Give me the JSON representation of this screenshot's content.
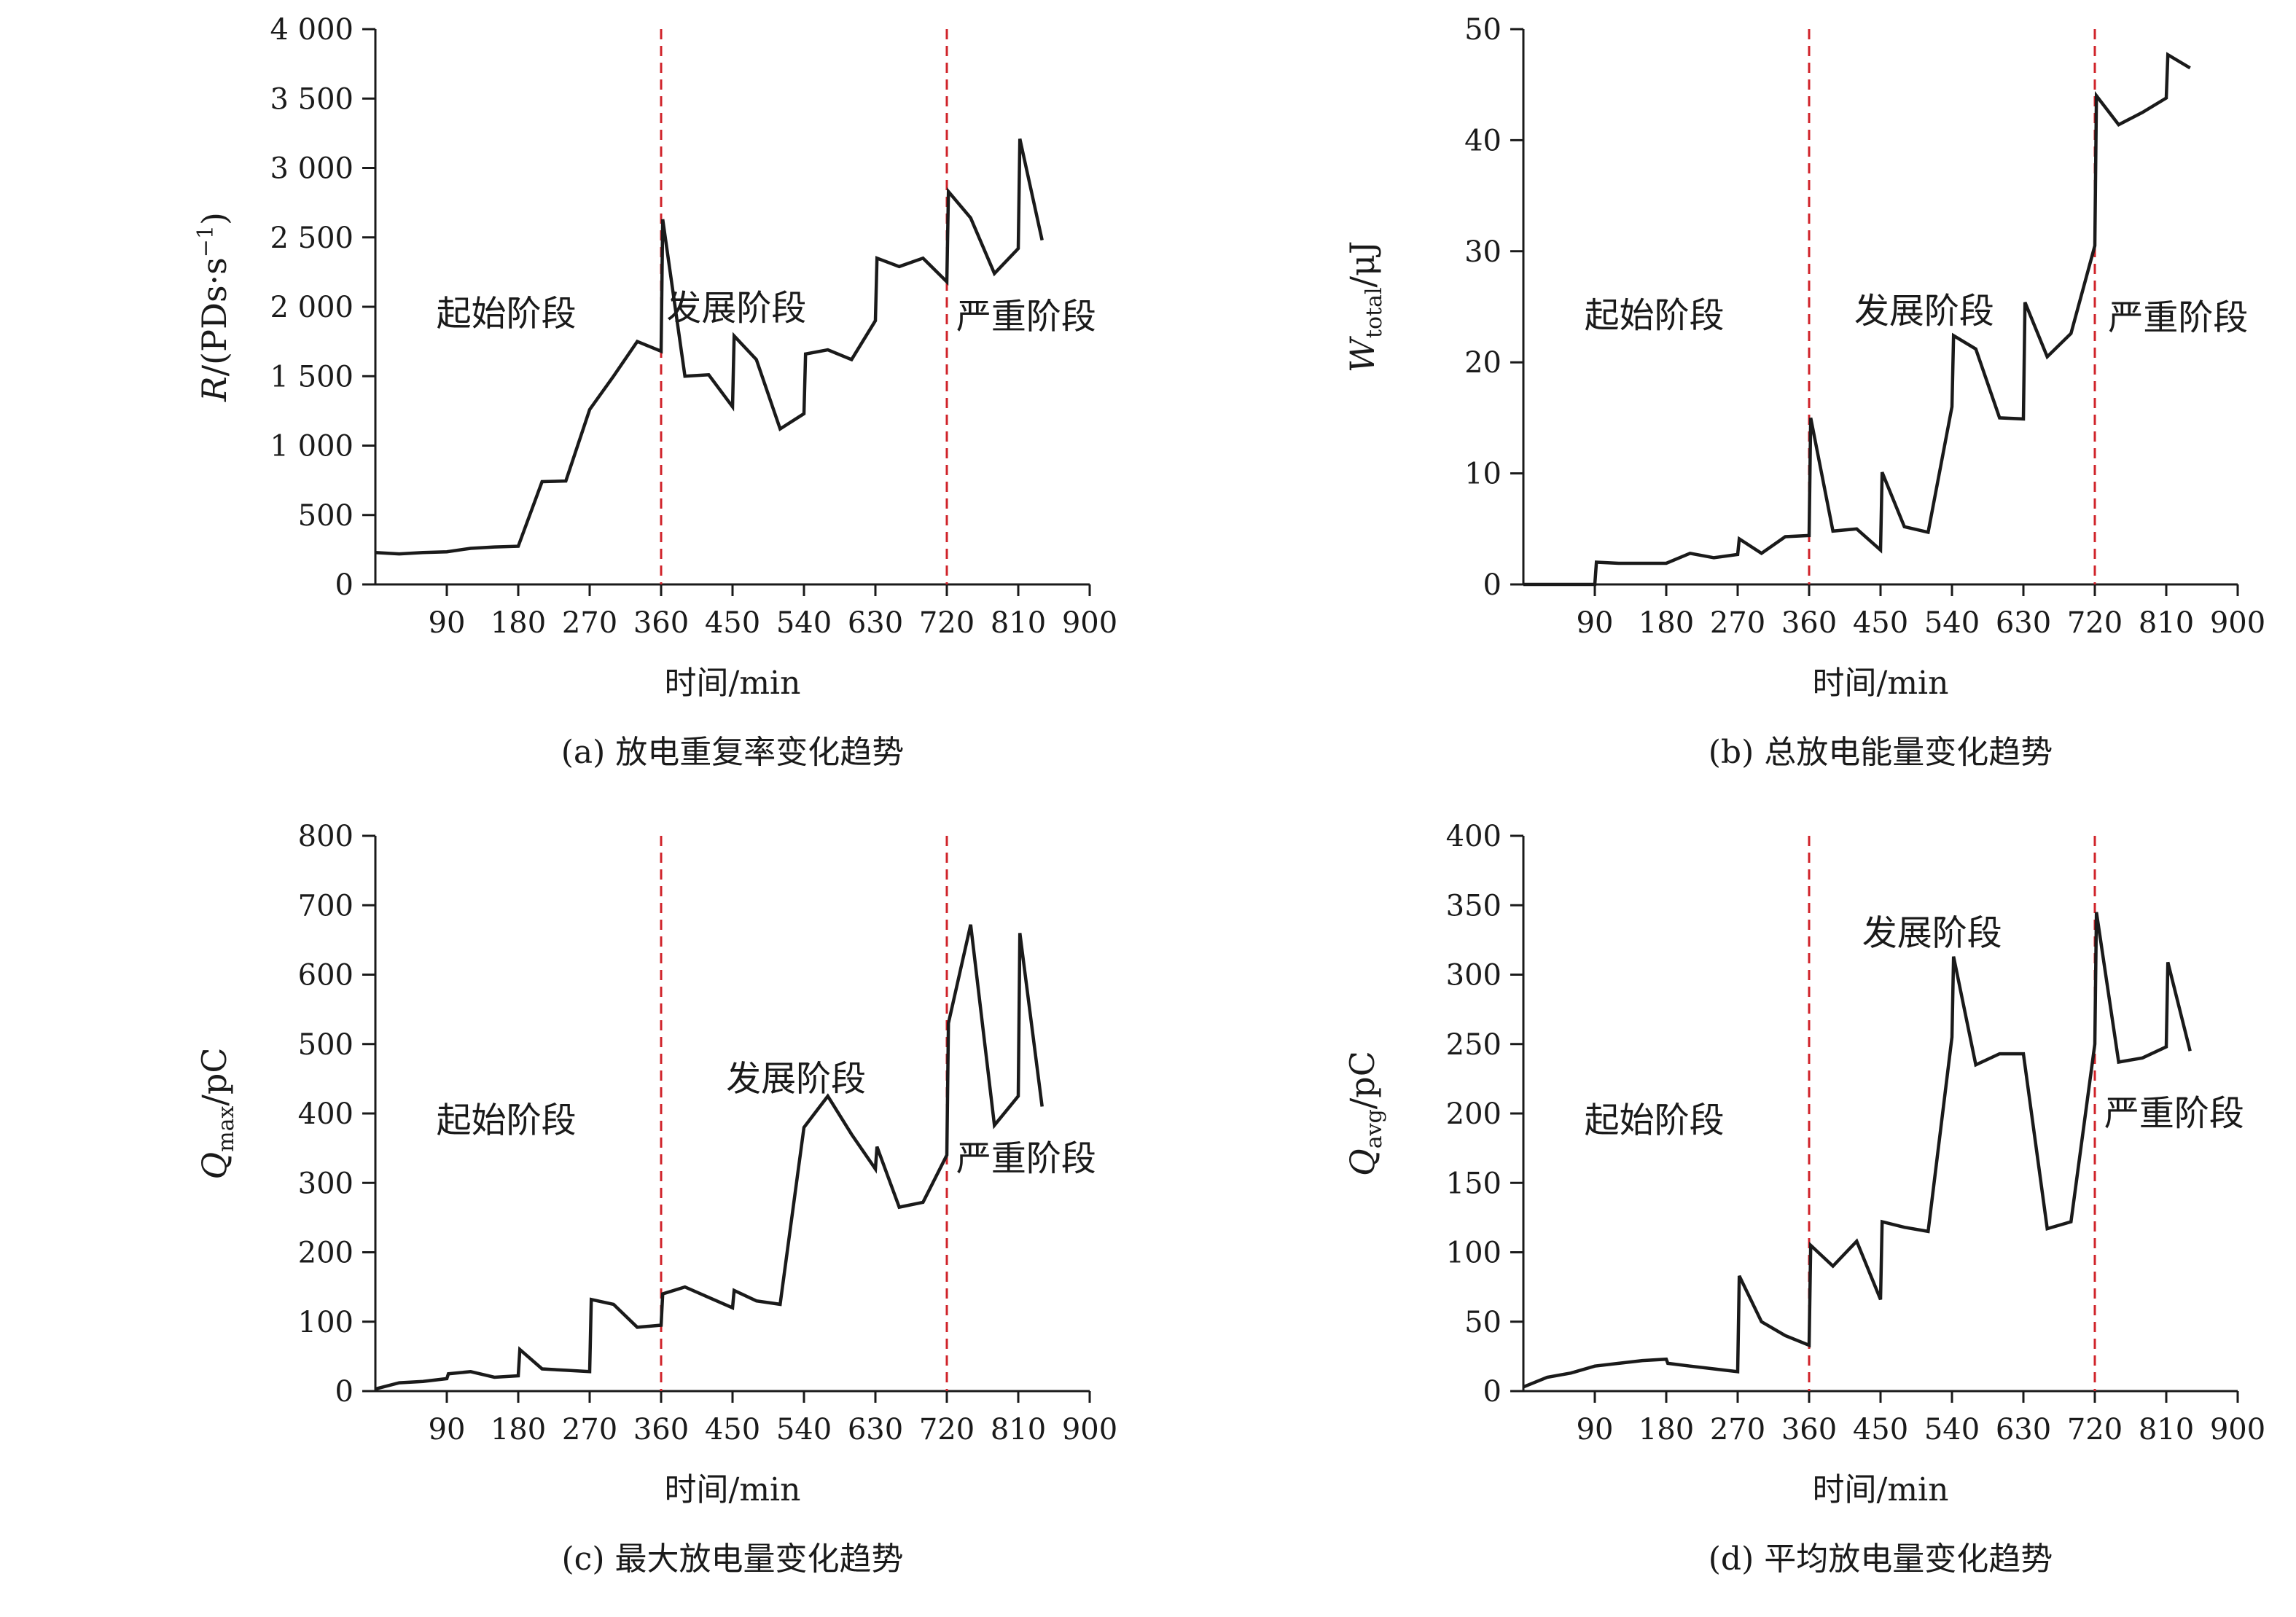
{
  "chart_data": [
    {
      "id": "a",
      "type": "line",
      "caption": "(a) 放电重复率变化趋势",
      "ylabel": {
        "main": "R",
        "sub": "",
        "rest": "/(PDs·s",
        "sup": "−1",
        "tail": ")"
      },
      "xlabel": "时间/min",
      "xlim": [
        0,
        900
      ],
      "ylim": [
        0,
        4000
      ],
      "xticks": [
        90,
        180,
        270,
        360,
        450,
        540,
        630,
        720,
        810,
        900
      ],
      "xtick_labels": [
        "90",
        "180",
        "270",
        "360",
        "450",
        "540",
        "630",
        "720",
        "810",
        "900"
      ],
      "yticks": [
        0,
        500,
        1000,
        1500,
        2000,
        2500,
        3000,
        3500,
        4000
      ],
      "ytick_labels": [
        "0",
        "500",
        "1 000",
        "1 500",
        "2 000",
        "2 500",
        "3 000",
        "3 500",
        "4 000"
      ],
      "dividers": [
        360,
        720
      ],
      "annotations": [
        {
          "text": "起始阶段",
          "x": 165,
          "y": 1950
        },
        {
          "text": "发展阶段",
          "x": 455,
          "y": 1990
        },
        {
          "text": "严重阶段",
          "x": 820,
          "y": 1930
        }
      ],
      "series": [
        {
          "values": [
            [
              0,
              230
            ],
            [
              30,
              220
            ],
            [
              60,
              230
            ],
            [
              90,
              235
            ],
            [
              120,
              260
            ],
            [
              150,
              270
            ],
            [
              180,
              275
            ],
            [
              210,
              740
            ],
            [
              240,
              745
            ],
            [
              270,
              1260
            ],
            [
              300,
              1500
            ],
            [
              330,
              1750
            ],
            [
              360,
              1680
            ],
            [
              362,
              2630
            ],
            [
              390,
              1500
            ],
            [
              420,
              1510
            ],
            [
              450,
              1280
            ],
            [
              452,
              1790
            ],
            [
              480,
              1620
            ],
            [
              510,
              1120
            ],
            [
              540,
              1230
            ],
            [
              542,
              1660
            ],
            [
              570,
              1690
            ],
            [
              600,
              1620
            ],
            [
              630,
              1900
            ],
            [
              632,
              2350
            ],
            [
              660,
              2290
            ],
            [
              690,
              2350
            ],
            [
              720,
              2180
            ],
            [
              722,
              2830
            ],
            [
              750,
              2640
            ],
            [
              780,
              2240
            ],
            [
              810,
              2420
            ],
            [
              812,
              3210
            ],
            [
              840,
              2480
            ]
          ]
        }
      ]
    },
    {
      "id": "b",
      "type": "line",
      "caption": "(b) 总放电能量变化趋势",
      "ylabel": {
        "main": "W",
        "sub": "total",
        "rest": "/μJ",
        "sup": "",
        "tail": ""
      },
      "xlabel": "时间/min",
      "xlim": [
        0,
        900
      ],
      "ylim": [
        0,
        50
      ],
      "xticks": [
        90,
        180,
        270,
        360,
        450,
        540,
        630,
        720,
        810,
        900
      ],
      "xtick_labels": [
        "90",
        "180",
        "270",
        "360",
        "450",
        "540",
        "630",
        "720",
        "810",
        "900"
      ],
      "yticks": [
        0,
        10,
        20,
        30,
        40,
        50
      ],
      "ytick_labels": [
        "0",
        "10",
        "20",
        "30",
        "40",
        "50"
      ],
      "dividers": [
        360,
        720
      ],
      "annotations": [
        {
          "text": "起始阶段",
          "x": 165,
          "y": 24.2
        },
        {
          "text": "发展阶段",
          "x": 505,
          "y": 24.6
        },
        {
          "text": "严重阶段",
          "x": 825,
          "y": 24.0
        }
      ],
      "series": [
        {
          "values": [
            [
              0,
              0
            ],
            [
              30,
              0
            ],
            [
              60,
              0
            ],
            [
              90,
              0
            ],
            [
              92,
              2.0
            ],
            [
              120,
              1.9
            ],
            [
              150,
              1.9
            ],
            [
              180,
              1.9
            ],
            [
              210,
              2.8
            ],
            [
              240,
              2.4
            ],
            [
              270,
              2.7
            ],
            [
              272,
              4.1
            ],
            [
              300,
              2.8
            ],
            [
              330,
              4.3
            ],
            [
              360,
              4.4
            ],
            [
              362,
              15.0
            ],
            [
              390,
              4.8
            ],
            [
              420,
              5.0
            ],
            [
              450,
              3.1
            ],
            [
              452,
              10.1
            ],
            [
              480,
              5.2
            ],
            [
              510,
              4.7
            ],
            [
              540,
              16.0
            ],
            [
              542,
              22.4
            ],
            [
              570,
              21.2
            ],
            [
              600,
              15.0
            ],
            [
              630,
              14.9
            ],
            [
              632,
              25.4
            ],
            [
              660,
              20.5
            ],
            [
              690,
              22.6
            ],
            [
              720,
              30.5
            ],
            [
              722,
              44.0
            ],
            [
              750,
              41.4
            ],
            [
              780,
              42.5
            ],
            [
              810,
              43.8
            ],
            [
              812,
              47.7
            ],
            [
              840,
              46.5
            ]
          ]
        }
      ]
    },
    {
      "id": "c",
      "type": "line",
      "caption": "(c) 最大放电量变化趋势",
      "ylabel": {
        "main": "Q",
        "sub": "max",
        "rest": "/pC",
        "sup": "",
        "tail": ""
      },
      "xlabel": "时间/min",
      "xlim": [
        0,
        900
      ],
      "ylim": [
        0,
        800
      ],
      "xticks": [
        90,
        180,
        270,
        360,
        450,
        540,
        630,
        720,
        810,
        900
      ],
      "xtick_labels": [
        "90",
        "180",
        "270",
        "360",
        "450",
        "540",
        "630",
        "720",
        "810",
        "900"
      ],
      "yticks": [
        0,
        100,
        200,
        300,
        400,
        500,
        600,
        700,
        800
      ],
      "ytick_labels": [
        "0",
        "100",
        "200",
        "300",
        "400",
        "500",
        "600",
        "700",
        "800"
      ],
      "dividers": [
        360,
        720
      ],
      "annotations": [
        {
          "text": "起始阶段",
          "x": 165,
          "y": 390
        },
        {
          "text": "发展阶段",
          "x": 530,
          "y": 450
        },
        {
          "text": "严重阶段",
          "x": 820,
          "y": 335
        }
      ],
      "series": [
        {
          "values": [
            [
              0,
              3
            ],
            [
              30,
              12
            ],
            [
              60,
              14
            ],
            [
              90,
              18
            ],
            [
              92,
              25
            ],
            [
              120,
              28
            ],
            [
              150,
              20
            ],
            [
              180,
              22
            ],
            [
              182,
              60
            ],
            [
              210,
              32
            ],
            [
              240,
              30
            ],
            [
              270,
              28
            ],
            [
              272,
              132
            ],
            [
              300,
              125
            ],
            [
              330,
              92
            ],
            [
              360,
              95
            ],
            [
              362,
              140
            ],
            [
              390,
              150
            ],
            [
              420,
              135
            ],
            [
              450,
              120
            ],
            [
              452,
              145
            ],
            [
              480,
              130
            ],
            [
              510,
              125
            ],
            [
              540,
              380
            ],
            [
              570,
              425
            ],
            [
              600,
              370
            ],
            [
              630,
              320
            ],
            [
              632,
              352
            ],
            [
              660,
              265
            ],
            [
              690,
              272
            ],
            [
              720,
              340
            ],
            [
              722,
              530
            ],
            [
              750,
              672
            ],
            [
              780,
              383
            ],
            [
              810,
              425
            ],
            [
              812,
              660
            ],
            [
              840,
              410
            ]
          ]
        }
      ]
    },
    {
      "id": "d",
      "type": "line",
      "caption": "(d) 平均放电量变化趋势",
      "ylabel": {
        "main": "Q",
        "sub": "avg",
        "rest": "/pC",
        "sup": "",
        "tail": ""
      },
      "xlabel": "时间/min",
      "xlim": [
        0,
        900
      ],
      "ylim": [
        0,
        400
      ],
      "xticks": [
        90,
        180,
        270,
        360,
        450,
        540,
        630,
        720,
        810,
        900
      ],
      "xtick_labels": [
        "90",
        "180",
        "270",
        "360",
        "450",
        "540",
        "630",
        "720",
        "810",
        "900"
      ],
      "yticks": [
        0,
        50,
        100,
        150,
        200,
        250,
        300,
        350,
        400
      ],
      "ytick_labels": [
        "0",
        "50",
        "100",
        "150",
        "200",
        "250",
        "300",
        "350",
        "400"
      ],
      "dividers": [
        360,
        720
      ],
      "annotations": [
        {
          "text": "起始阶段",
          "x": 165,
          "y": 195
        },
        {
          "text": "发展阶段",
          "x": 515,
          "y": 330
        },
        {
          "text": "严重阶段",
          "x": 820,
          "y": 200
        }
      ],
      "series": [
        {
          "values": [
            [
              0,
              3
            ],
            [
              30,
              10
            ],
            [
              60,
              13
            ],
            [
              90,
              18
            ],
            [
              120,
              20
            ],
            [
              150,
              22
            ],
            [
              180,
              23
            ],
            [
              182,
              20
            ],
            [
              210,
              18
            ],
            [
              240,
              16
            ],
            [
              270,
              14
            ],
            [
              272,
              83
            ],
            [
              300,
              50
            ],
            [
              330,
              40
            ],
            [
              360,
              33
            ],
            [
              362,
              105
            ],
            [
              390,
              90
            ],
            [
              420,
              108
            ],
            [
              450,
              66
            ],
            [
              452,
              122
            ],
            [
              480,
              118
            ],
            [
              510,
              115
            ],
            [
              540,
              255
            ],
            [
              542,
              313
            ],
            [
              570,
              235
            ],
            [
              600,
              243
            ],
            [
              630,
              243
            ],
            [
              660,
              117
            ],
            [
              690,
              122
            ],
            [
              720,
              250
            ],
            [
              722,
              345
            ],
            [
              750,
              237
            ],
            [
              780,
              240
            ],
            [
              810,
              248
            ],
            [
              812,
              309
            ],
            [
              840,
              245
            ]
          ]
        }
      ]
    }
  ]
}
